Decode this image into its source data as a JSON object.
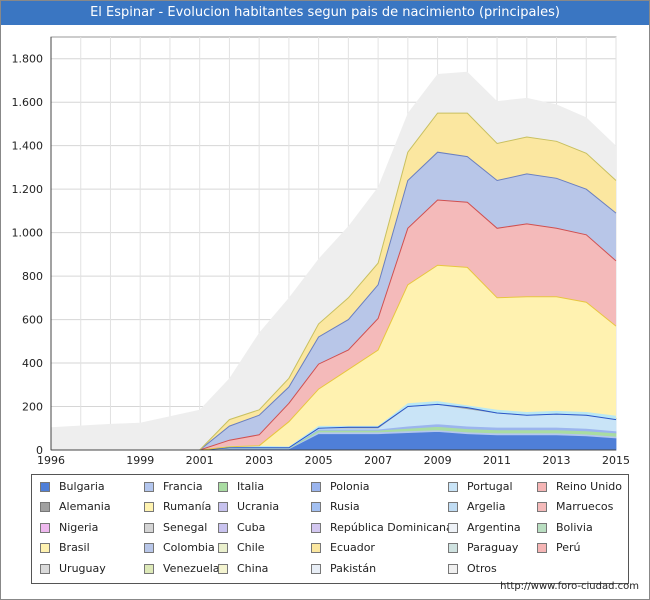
{
  "header": {
    "title": "El Espinar - Evolucion habitantes segun pais de nacimiento (principales)"
  },
  "footer": {
    "url": "http://www.foro-ciudad.com"
  },
  "chart_data": {
    "type": "area",
    "stacked": true,
    "x": [
      1996,
      1998,
      1999,
      2001,
      2002,
      2003,
      2004,
      2005,
      2006,
      2007,
      2008,
      2009,
      2010,
      2011,
      2012,
      2013,
      2014,
      2015
    ],
    "x_ticks": [
      1996,
      1999,
      2001,
      2003,
      2005,
      2007,
      2009,
      2011,
      2013,
      2015
    ],
    "ylim": [
      0,
      1900
    ],
    "y_ticks": [
      0,
      200,
      400,
      600,
      800,
      1000,
      1200,
      1400,
      1600,
      1800
    ],
    "y_tick_labels": [
      "0",
      "200",
      "400",
      "600",
      "800",
      "1.000",
      "1.200",
      "1.400",
      "1.600",
      "1.800"
    ],
    "grid": true,
    "legend_position": "bottom",
    "total": {
      "name": "Total extranjeros",
      "color": "#eeeeee",
      "values": [
        105,
        120,
        125,
        185,
        330,
        540,
        700,
        880,
        1030,
        1210,
        1550,
        1730,
        1740,
        1605,
        1620,
        1590,
        1530,
        1400
      ]
    },
    "series": [
      {
        "name": "Bulgaria",
        "color": "#4f7fd8",
        "values": [
          0,
          0,
          0,
          0,
          5,
          5,
          5,
          75,
          75,
          75,
          80,
          85,
          75,
          70,
          70,
          70,
          65,
          55
        ]
      },
      {
        "name": "Francia",
        "color": "#b3c6ee",
        "values": [
          0,
          0,
          0,
          0,
          3,
          3,
          3,
          8,
          8,
          8,
          8,
          8,
          8,
          8,
          8,
          8,
          8,
          8
        ]
      },
      {
        "name": "Italia",
        "color": "#a9dca2",
        "values": [
          0,
          0,
          0,
          0,
          2,
          2,
          2,
          8,
          8,
          8,
          12,
          15,
          15,
          15,
          15,
          15,
          15,
          15
        ]
      },
      {
        "name": "Polonia",
        "color": "#9bb5ee",
        "values": [
          0,
          0,
          0,
          0,
          0,
          0,
          0,
          5,
          5,
          5,
          10,
          12,
          12,
          12,
          12,
          12,
          12,
          10
        ]
      },
      {
        "name": "Portugal",
        "color": "#c9e4f7",
        "values": [
          0,
          0,
          0,
          0,
          2,
          2,
          2,
          5,
          5,
          5,
          90,
          90,
          80,
          65,
          55,
          60,
          60,
          55
        ]
      },
      {
        "name": "Reino Unido",
        "color": "#f5b5b5",
        "values": [
          0,
          0,
          0,
          0,
          0,
          0,
          0,
          0,
          0,
          0,
          0,
          0,
          0,
          0,
          0,
          0,
          0,
          0
        ]
      },
      {
        "name": "Alemania",
        "color": "#a0a0a0",
        "values": [
          0,
          0,
          0,
          0,
          2,
          2,
          2,
          5,
          5,
          5,
          5,
          5,
          5,
          5,
          5,
          5,
          5,
          5
        ]
      },
      {
        "name": "Rumanía",
        "color": "#fff3b0",
        "values": [
          0,
          0,
          0,
          0,
          5,
          5,
          2,
          5,
          5,
          5,
          10,
          10,
          10,
          10,
          10,
          10,
          10,
          10
        ]
      },
      {
        "name": "Ucrania",
        "color": "#c7c2ee",
        "values": [
          0,
          0,
          0,
          0,
          0,
          0,
          0,
          0,
          0,
          0,
          0,
          0,
          0,
          0,
          0,
          0,
          0,
          0
        ]
      },
      {
        "name": "Rusia",
        "color": "#a3c0f2",
        "values": [
          0,
          0,
          0,
          0,
          0,
          0,
          0,
          0,
          0,
          0,
          0,
          0,
          0,
          0,
          0,
          0,
          0,
          0
        ]
      },
      {
        "name": "Argelia",
        "color": "#c0dcf3",
        "values": [
          0,
          0,
          0,
          0,
          0,
          0,
          0,
          0,
          0,
          0,
          0,
          0,
          0,
          0,
          0,
          0,
          0,
          0
        ]
      },
      {
        "name": "Marruecos",
        "color": "#f4baba",
        "values": [
          0,
          0,
          0,
          0,
          0,
          0,
          0,
          0,
          0,
          0,
          0,
          0,
          0,
          0,
          0,
          0,
          0,
          0
        ]
      },
      {
        "name": "Nigeria",
        "color": "#eeb8ee",
        "values": [
          0,
          0,
          0,
          0,
          0,
          0,
          0,
          0,
          0,
          0,
          0,
          0,
          0,
          0,
          0,
          0,
          0,
          0
        ]
      },
      {
        "name": "Senegal",
        "color": "#d4d4d4",
        "values": [
          0,
          0,
          0,
          0,
          0,
          0,
          0,
          0,
          0,
          0,
          0,
          0,
          0,
          0,
          0,
          0,
          0,
          0
        ]
      },
      {
        "name": "Cuba",
        "color": "#c9c3ef",
        "values": [
          0,
          0,
          0,
          0,
          0,
          0,
          0,
          0,
          0,
          0,
          0,
          0,
          0,
          0,
          0,
          0,
          0,
          0
        ]
      },
      {
        "name": "República Dominicana",
        "color": "#d3c7f0",
        "values": [
          0,
          0,
          0,
          0,
          0,
          0,
          0,
          0,
          0,
          0,
          0,
          0,
          0,
          0,
          0,
          0,
          0,
          0
        ]
      },
      {
        "name": "Argentina",
        "color": "#eef2f7",
        "values": [
          0,
          0,
          0,
          0,
          0,
          0,
          0,
          0,
          0,
          0,
          0,
          0,
          0,
          0,
          0,
          0,
          0,
          0
        ]
      },
      {
        "name": "Bolivia",
        "color": "#b9dec1",
        "values": [
          0,
          0,
          0,
          0,
          0,
          0,
          0,
          0,
          0,
          0,
          0,
          0,
          0,
          0,
          0,
          0,
          0,
          0
        ]
      },
      {
        "name": "Brasil",
        "color": "#fff2b0",
        "values": [
          0,
          0,
          0,
          0,
          0,
          0,
          0,
          0,
          0,
          0,
          0,
          0,
          0,
          0,
          0,
          0,
          0,
          0
        ]
      },
      {
        "name": "Colombia",
        "color": "#b8c6e8",
        "values": [
          0,
          0,
          0,
          0,
          0,
          0,
          0,
          0,
          0,
          0,
          0,
          0,
          0,
          0,
          0,
          0,
          0,
          0
        ]
      },
      {
        "name": "Chile",
        "color": "#eaf0cd",
        "values": [
          0,
          0,
          0,
          0,
          0,
          0,
          0,
          0,
          0,
          0,
          0,
          0,
          0,
          0,
          0,
          0,
          0,
          0
        ]
      },
      {
        "name": "Ecuador",
        "color": "#fbe7a0",
        "values": [
          0,
          0,
          0,
          0,
          0,
          0,
          0,
          0,
          0,
          0,
          0,
          0,
          0,
          0,
          0,
          0,
          0,
          0
        ]
      },
      {
        "name": "Paraguay",
        "color": "#cfe2e0",
        "values": [
          0,
          0,
          0,
          0,
          0,
          0,
          0,
          0,
          0,
          0,
          0,
          0,
          0,
          0,
          0,
          0,
          0,
          0
        ]
      },
      {
        "name": "Perú",
        "color": "#f5b5b5",
        "values": [
          0,
          0,
          0,
          0,
          0,
          0,
          0,
          0,
          0,
          0,
          0,
          0,
          0,
          0,
          0,
          0,
          0,
          0
        ]
      },
      {
        "name": "Uruguay",
        "color": "#dadada",
        "values": [
          0,
          0,
          0,
          0,
          0,
          0,
          0,
          0,
          0,
          0,
          0,
          0,
          0,
          0,
          0,
          0,
          0,
          0
        ]
      },
      {
        "name": "Venezuela",
        "color": "#dde9b8",
        "values": [
          0,
          0,
          0,
          0,
          0,
          0,
          0,
          0,
          0,
          0,
          0,
          0,
          0,
          0,
          0,
          0,
          0,
          0
        ]
      },
      {
        "name": "China",
        "color": "#f4f4d0",
        "values": [
          0,
          0,
          0,
          0,
          0,
          0,
          0,
          0,
          0,
          0,
          0,
          0,
          0,
          0,
          0,
          0,
          0,
          0
        ]
      },
      {
        "name": "Pakistán",
        "color": "#e8eef6",
        "values": [
          0,
          0,
          0,
          0,
          0,
          0,
          0,
          0,
          0,
          0,
          0,
          0,
          0,
          0,
          0,
          0,
          0,
          0
        ]
      },
      {
        "name": "Otros",
        "color": "#f0f0f0",
        "values": [
          0,
          0,
          0,
          0,
          0,
          0,
          0,
          0,
          0,
          0,
          0,
          0,
          0,
          0,
          0,
          0,
          0,
          0
        ]
      }
    ],
    "estimated_stack_tops": [
      {
        "name": "Portugal top",
        "values": [
          0,
          0,
          0,
          0,
          10,
          10,
          10,
          100,
          105,
          105,
          200,
          210,
          195,
          170,
          160,
          165,
          160,
          140
        ]
      },
      {
        "name": "Rumanía top",
        "values": [
          0,
          0,
          0,
          0,
          15,
          20,
          130,
          280,
          370,
          460,
          760,
          850,
          840,
          700,
          705,
          705,
          680,
          570
        ]
      },
      {
        "name": "Marruecos top",
        "values": [
          0,
          0,
          0,
          0,
          45,
          70,
          215,
          395,
          460,
          605,
          1020,
          1150,
          1140,
          1020,
          1040,
          1020,
          990,
          870
        ]
      },
      {
        "name": "Colombia top",
        "values": [
          0,
          0,
          0,
          0,
          110,
          160,
          290,
          520,
          600,
          760,
          1240,
          1370,
          1350,
          1240,
          1270,
          1250,
          1200,
          1090
        ]
      },
      {
        "name": "Total shown",
        "values": [
          0,
          0,
          0,
          0,
          140,
          185,
          330,
          580,
          700,
          860,
          1370,
          1550,
          1550,
          1410,
          1440,
          1420,
          1365,
          1240
        ]
      }
    ]
  },
  "legend": {
    "items": [
      {
        "label": "Bulgaria",
        "color": "#4f7fd8"
      },
      {
        "label": "Francia",
        "color": "#b3c6ee"
      },
      {
        "label": "Italia",
        "color": "#a9dca2"
      },
      {
        "label": "Polonia",
        "color": "#9bb5ee"
      },
      {
        "label": "Portugal",
        "color": "#c9e4f7"
      },
      {
        "label": "Reino Unido",
        "color": "#f5b5b5"
      },
      {
        "label": "Alemania",
        "color": "#a0a0a0"
      },
      {
        "label": "Rumanía",
        "color": "#fff3b0"
      },
      {
        "label": "Ucrania",
        "color": "#c7c2ee"
      },
      {
        "label": "Rusia",
        "color": "#a3c0f2"
      },
      {
        "label": "Argelia",
        "color": "#c0dcf3"
      },
      {
        "label": "Marruecos",
        "color": "#f4baba"
      },
      {
        "label": "Nigeria",
        "color": "#eeb8ee"
      },
      {
        "label": "Senegal",
        "color": "#d4d4d4"
      },
      {
        "label": "Cuba",
        "color": "#c9c3ef"
      },
      {
        "label": "República Dominicana",
        "color": "#d3c7f0"
      },
      {
        "label": "Argentina",
        "color": "#eef2f7"
      },
      {
        "label": "Bolivia",
        "color": "#b9dec1"
      },
      {
        "label": "Brasil",
        "color": "#fff2b0"
      },
      {
        "label": "Colombia",
        "color": "#b8c6e8"
      },
      {
        "label": "Chile",
        "color": "#eaf0cd"
      },
      {
        "label": "Ecuador",
        "color": "#fbe7a0"
      },
      {
        "label": "Paraguay",
        "color": "#cfe2e0"
      },
      {
        "label": "Perú",
        "color": "#f5b5b5"
      },
      {
        "label": "Uruguay",
        "color": "#dadada"
      },
      {
        "label": "Venezuela",
        "color": "#dde9b8"
      },
      {
        "label": "China",
        "color": "#f4f4d0"
      },
      {
        "label": "Pakistán",
        "color": "#e8eef6"
      },
      {
        "label": "Otros",
        "color": "#f0f0f0"
      }
    ]
  }
}
